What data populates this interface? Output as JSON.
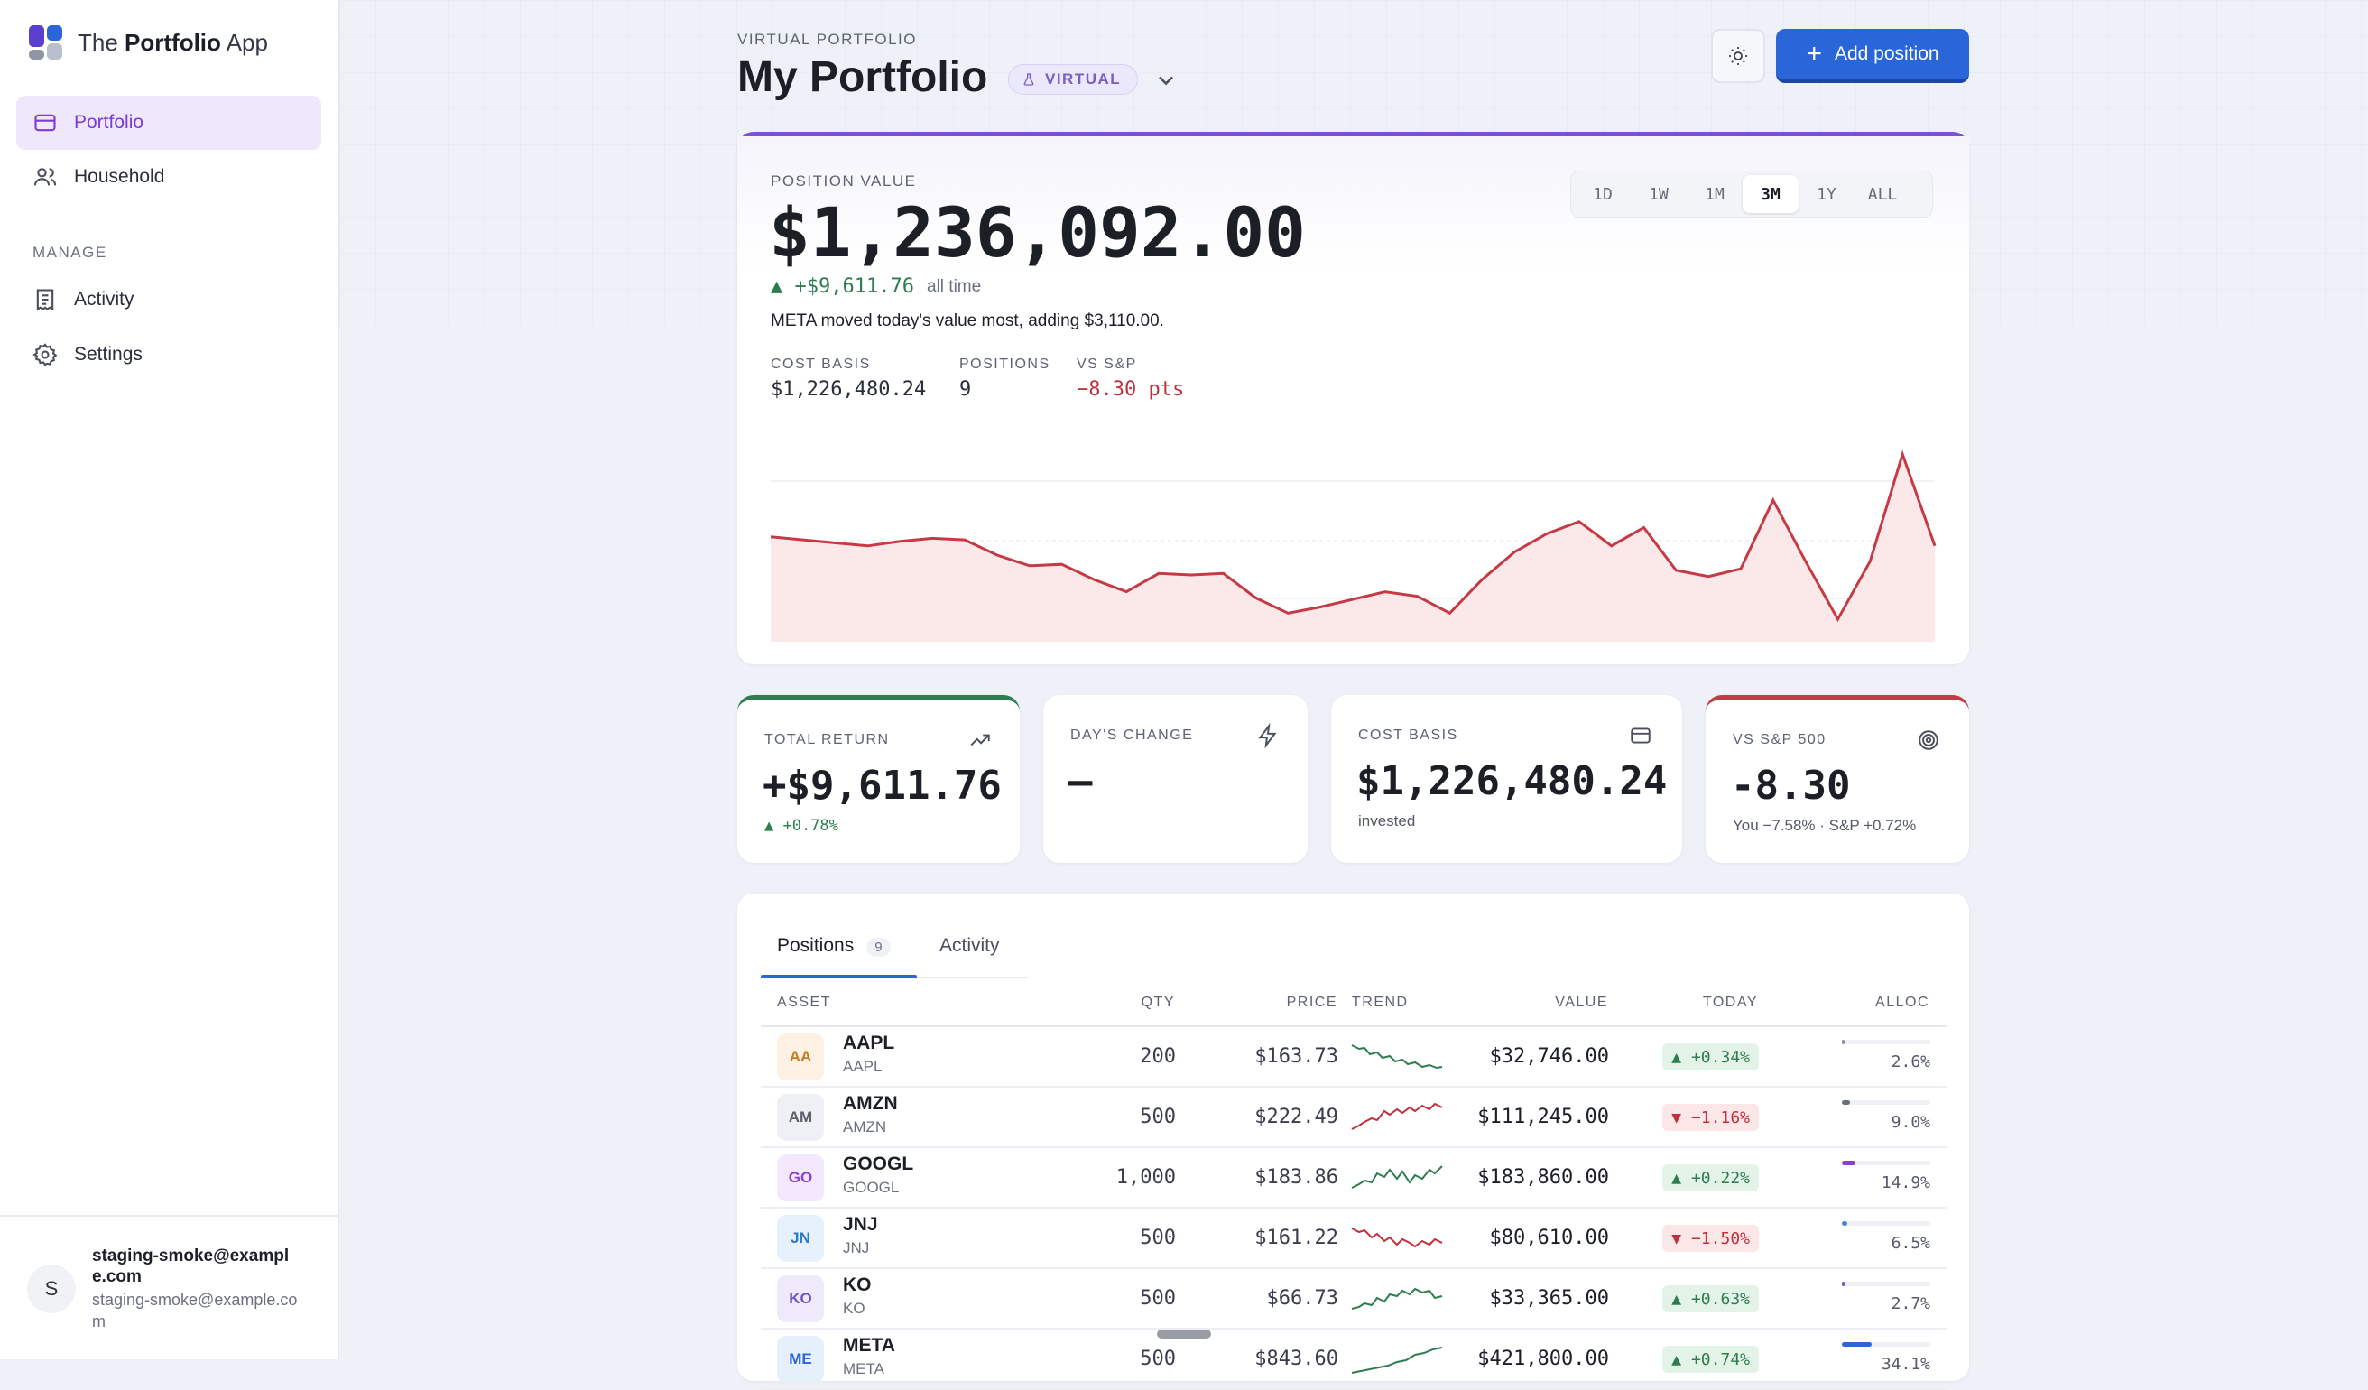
{
  "app": {
    "brand_prefix": "The ",
    "brand_bold": "Portfolio",
    "brand_suffix": " App"
  },
  "nav": {
    "items": [
      {
        "label": "Portfolio",
        "icon": "wallet-icon"
      },
      {
        "label": "Household",
        "icon": "users-icon"
      }
    ],
    "section_label": "MANAGE",
    "manage_items": [
      {
        "label": "Activity",
        "icon": "receipt-icon"
      },
      {
        "label": "Settings",
        "icon": "gear-icon"
      }
    ]
  },
  "user": {
    "initial": "S",
    "name": "staging-smoke@example.com",
    "email": "staging-smoke@example.com"
  },
  "header": {
    "eyebrow": "VIRTUAL PORTFOLIO",
    "title": "My Portfolio",
    "badge": "VIRTUAL",
    "add_label": "Add position"
  },
  "hero": {
    "label": "POSITION VALUE",
    "value": "$1,236,092.00",
    "change": "▲ +$9,611.76",
    "change_period": "all time",
    "note": "META moved today's value most, adding $3,110.00.",
    "metrics": [
      {
        "label": "COST BASIS",
        "value": "$1,226,480.24",
        "color": "#2a2e38"
      },
      {
        "label": "POSITIONS",
        "value": "9",
        "color": "#2a2e38"
      },
      {
        "label": "VS S&P",
        "value": "−8.30 pts",
        "color": "#c0313b"
      }
    ],
    "ranges": [
      "1D",
      "1W",
      "1M",
      "3M",
      "1Y",
      "ALL"
    ],
    "selected_range": "3M"
  },
  "chart_data": {
    "type": "area",
    "values": [
      64,
      62,
      60,
      58,
      61,
      63,
      62,
      52,
      45,
      46,
      36,
      28,
      40,
      39,
      40,
      24,
      14,
      18,
      23,
      28,
      25,
      14,
      36,
      54,
      66,
      74,
      58,
      70,
      42,
      38,
      43,
      88,
      48,
      10,
      48,
      118,
      58
    ],
    "line_color": "#c63a45",
    "fill_color": "#fbe9ea"
  },
  "stats": [
    {
      "label": "TOTAL RETURN",
      "value": "+$9,611.76",
      "sub": "▲ +0.78%",
      "icon": "trending-up-icon",
      "accent": "#2e7d4f"
    },
    {
      "label": "DAY'S CHANGE",
      "value": "—",
      "sub": "",
      "icon": "lightning-icon",
      "accent": ""
    },
    {
      "label": "COST BASIS",
      "value": "$1,226,480.24",
      "sub": "invested",
      "icon": "wallet-icon",
      "accent": ""
    },
    {
      "label": "VS S&P 500",
      "value": "-8.30",
      "sub": "You −7.58% · S&P +0.72%",
      "icon": "target-icon",
      "accent": "#c63a45"
    }
  ],
  "tabs": [
    {
      "label": "Positions",
      "count": "9"
    },
    {
      "label": "Activity"
    }
  ],
  "table": {
    "headers": [
      "ASSET",
      "QTY",
      "PRICE",
      "TREND",
      "VALUE",
      "TODAY",
      "ALLOC"
    ],
    "rows": [
      {
        "badge": "AA",
        "name": "AAPL",
        "sym": "AAPL",
        "qty": "200",
        "price": "$163.73",
        "value": "$32,746.00",
        "today": "▲ +0.34%",
        "dir": "up",
        "alloc": "2.6%",
        "alloc_pct": 2.6,
        "badge_bg": "#fdf1e3",
        "badge_fg": "#c77a21",
        "bar": "#8b8f99"
      },
      {
        "badge": "AM",
        "name": "AMZN",
        "sym": "AMZN",
        "qty": "500",
        "price": "$222.49",
        "value": "$111,245.00",
        "today": "▼ −1.16%",
        "dir": "down",
        "alloc": "9.0%",
        "alloc_pct": 9.0,
        "badge_bg": "#eef0f4",
        "badge_fg": "#5b606c",
        "bar": "#6b6f79"
      },
      {
        "badge": "GO",
        "name": "GOOGL",
        "sym": "GOOGL",
        "qty": "1,000",
        "price": "$183.86",
        "value": "$183,860.00",
        "today": "▲ +0.22%",
        "dir": "up",
        "alloc": "14.9%",
        "alloc_pct": 14.9,
        "badge_bg": "#f3e8fd",
        "badge_fg": "#8a3fd6",
        "bar": "#8a3fd6"
      },
      {
        "badge": "JN",
        "name": "JNJ",
        "sym": "JNJ",
        "qty": "500",
        "price": "$161.22",
        "value": "$80,610.00",
        "today": "▼ −1.50%",
        "dir": "down",
        "alloc": "6.5%",
        "alloc_pct": 6.5,
        "badge_bg": "#e6f1fb",
        "badge_fg": "#2c7bc7",
        "bar": "#3d8bd6"
      },
      {
        "badge": "KO",
        "name": "KO",
        "sym": "KO",
        "qty": "500",
        "price": "$66.73",
        "value": "$33,365.00",
        "today": "▲ +0.63%",
        "dir": "up",
        "alloc": "2.7%",
        "alloc_pct": 2.7,
        "badge_bg": "#eeeafc",
        "badge_fg": "#6f57c8",
        "bar": "#6f57c8"
      },
      {
        "badge": "ME",
        "name": "META",
        "sym": "META",
        "qty": "500",
        "price": "$843.60",
        "value": "$421,800.00",
        "today": "▲ +0.74%",
        "dir": "up",
        "alloc": "34.1%",
        "alloc_pct": 34.1,
        "badge_bg": "#e6f0fb",
        "badge_fg": "#2b66d9",
        "bar": "#2b66d9"
      }
    ]
  },
  "colors": {
    "accent": "#2b66d9",
    "brand_purple": "#7d4fd3",
    "up": "#2e7d4f",
    "down": "#c0313b"
  }
}
